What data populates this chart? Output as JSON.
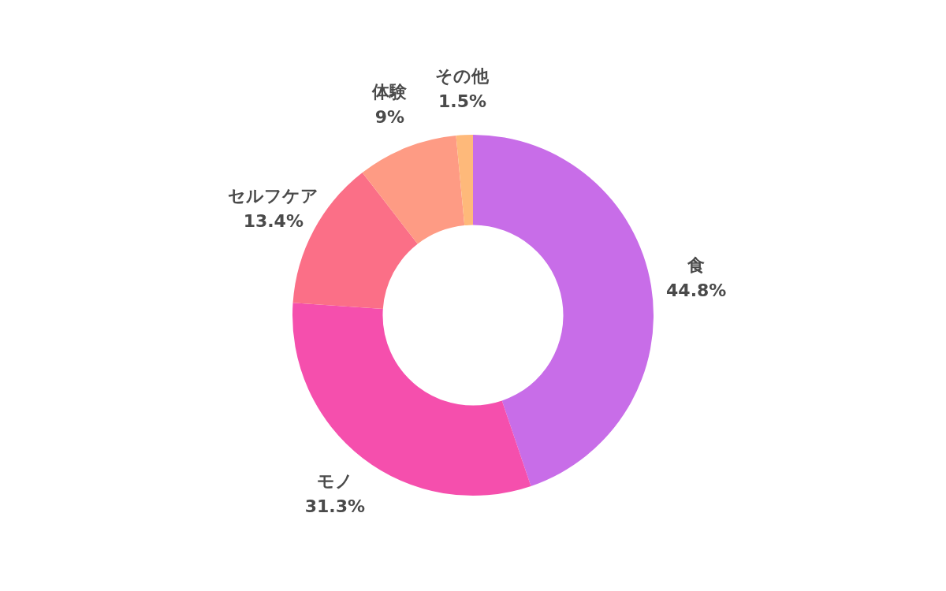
{
  "chart_data": {
    "type": "donut",
    "categories": [
      "食",
      "モノ",
      "セルフケア",
      "体験",
      "その他"
    ],
    "values": [
      44.8,
      31.3,
      13.4,
      9,
      1.5
    ],
    "value_labels": [
      "44.8%",
      "31.3%",
      "13.4%",
      "9%",
      "1.5%"
    ],
    "colors": [
      "#c86de8",
      "#f54fad",
      "#fb6f87",
      "#fe9b84",
      "#feb97a"
    ],
    "legend": false
  }
}
